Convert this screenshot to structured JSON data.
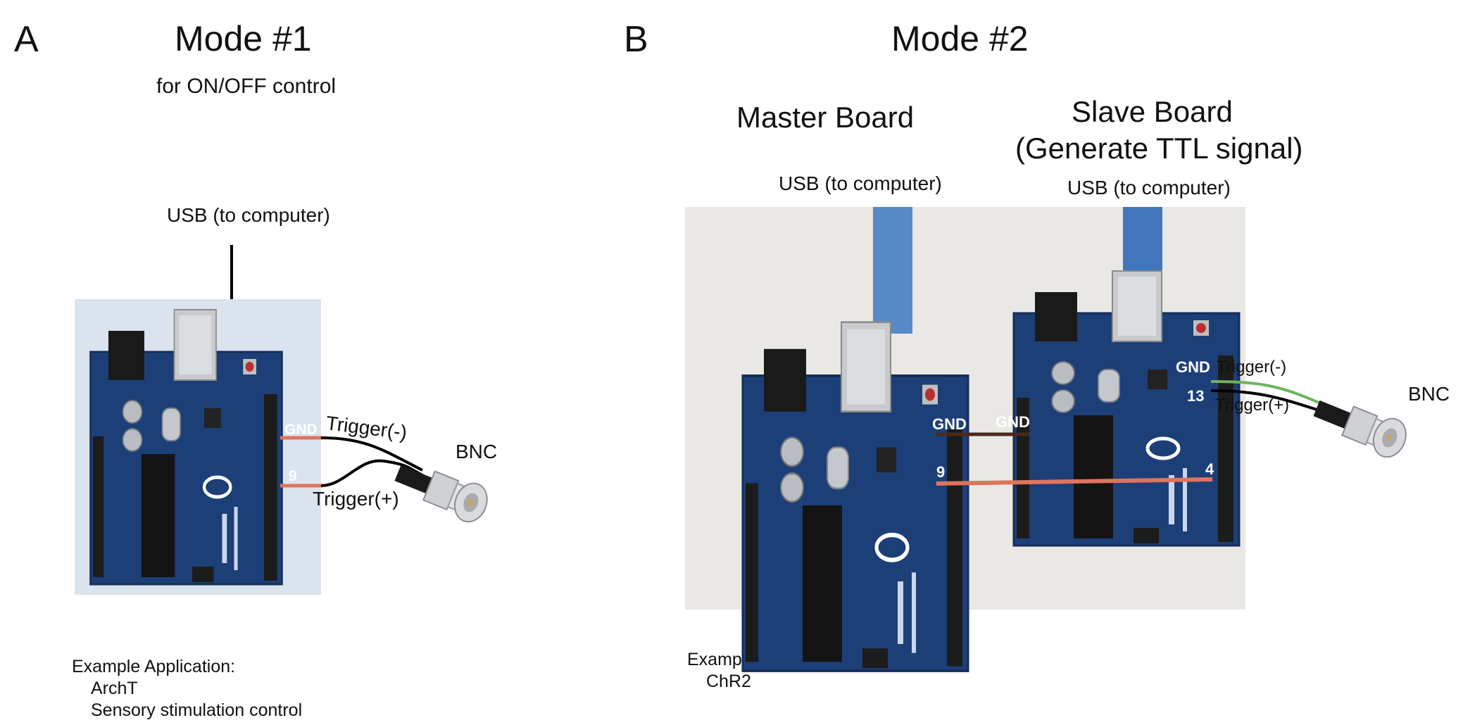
{
  "panel_a": {
    "letter": "A",
    "title": "Mode #1",
    "subtitle": "for ON/OFF control",
    "usb_label": "USB (to computer)",
    "pin_gnd": "GND",
    "pin_9": "9",
    "trigger_minus": "Trigger(-)",
    "trigger_plus": "Trigger(+)",
    "bnc_label": "BNC",
    "example_heading": "Example Application:",
    "examples": [
      "ArchT",
      "Sensory stimulation control"
    ]
  },
  "panel_b": {
    "letter": "B",
    "title": "Mode #2",
    "master_title": "Master Board",
    "slave_title_line1": "Slave Board",
    "slave_title_line2": "(Generate TTL signal)",
    "master_usb_label": "USB (to computer)",
    "slave_usb_label": "USB (to computer)",
    "master_gnd": "GND",
    "master_pin_9": "9",
    "slave_gnd_left": "GND",
    "slave_pin_4": "4",
    "slave_gnd_right": "GND",
    "slave_pin_13": "13",
    "trigger_minus": "Trigger(-)",
    "trigger_plus": "Trigger(+)",
    "bnc_label": "BNC",
    "example_heading": "Example Application:",
    "examples": [
      "ChR2"
    ]
  },
  "colors": {
    "board_blue": "#1d3f78",
    "wire_red": "#e0735e",
    "wire_brown": "#4a2a1e",
    "photo_bg_a": "#dbe3ee",
    "photo_bg_b": "#e9e8e4"
  }
}
